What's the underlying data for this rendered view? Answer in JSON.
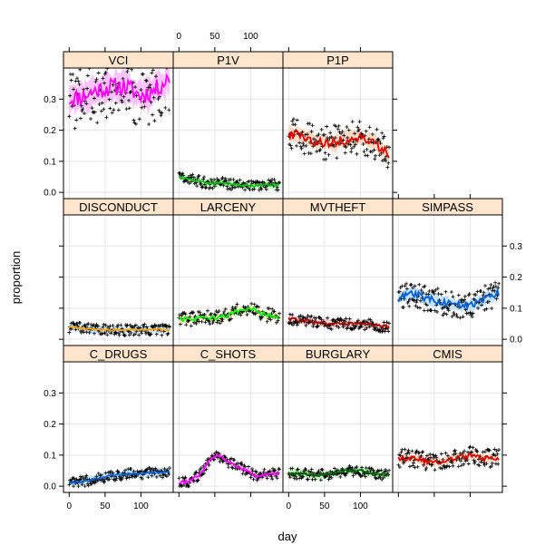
{
  "chart_data": {
    "type": "scatter",
    "xlabel": "day",
    "ylabel": "proportion",
    "xlim": [
      -8,
      145
    ],
    "ylim": [
      -0.02,
      0.4
    ],
    "x_ticks": [
      0,
      50,
      100
    ],
    "x_tick_labels": [
      "0",
      "50",
      "100"
    ],
    "y_ticks": [
      0.0,
      0.1,
      0.2,
      0.3
    ],
    "y_tick_labels": [
      "0.0",
      "0.1",
      "0.2",
      "0.3"
    ],
    "grid": true,
    "layout": {
      "columns": 4,
      "rows": 3
    },
    "colors": {
      "strip": "#ffe5cc",
      "grid": "#e6e6e6",
      "points": "#000000"
    },
    "panels": [
      {
        "name": "VCI",
        "row": 0,
        "col": 0,
        "color": "#ff00ff",
        "band": "#ffc0ff",
        "mean": 0.33,
        "trend": [
          [
            0,
            0.3
          ],
          [
            20,
            0.31
          ],
          [
            40,
            0.33
          ],
          [
            60,
            0.34
          ],
          [
            80,
            0.34
          ],
          [
            100,
            0.31
          ],
          [
            120,
            0.33
          ],
          [
            140,
            0.37
          ]
        ]
      },
      {
        "name": "P1V",
        "row": 0,
        "col": 1,
        "color": "#00c000",
        "band": "#c0ffc0",
        "mean": 0.035,
        "trend": [
          [
            0,
            0.05
          ],
          [
            20,
            0.04
          ],
          [
            40,
            0.03
          ],
          [
            60,
            0.03
          ],
          [
            80,
            0.025
          ],
          [
            100,
            0.02
          ],
          [
            120,
            0.025
          ],
          [
            140,
            0.025
          ]
        ]
      },
      {
        "name": "P1P",
        "row": 0,
        "col": 2,
        "color": "#e00000",
        "band": "#ffd8c0",
        "mean": 0.17,
        "trend": [
          [
            0,
            0.19
          ],
          [
            20,
            0.18
          ],
          [
            40,
            0.16
          ],
          [
            60,
            0.16
          ],
          [
            80,
            0.17
          ],
          [
            100,
            0.18
          ],
          [
            120,
            0.16
          ],
          [
            140,
            0.12
          ]
        ]
      },
      {
        "name": "DISCONDUCT",
        "row": 1,
        "col": 0,
        "color": "#ffa500",
        "band": "#c8e4ff",
        "mean": 0.03,
        "trend": [
          [
            0,
            0.04
          ],
          [
            20,
            0.035
          ],
          [
            40,
            0.03
          ],
          [
            60,
            0.03
          ],
          [
            80,
            0.03
          ],
          [
            100,
            0.03
          ],
          [
            120,
            0.032
          ],
          [
            140,
            0.03
          ]
        ]
      },
      {
        "name": "LARCENY",
        "row": 1,
        "col": 1,
        "color": "#00ff00",
        "band": "#ffffc0",
        "mean": 0.07,
        "trend": [
          [
            0,
            0.065
          ],
          [
            20,
            0.065
          ],
          [
            40,
            0.07
          ],
          [
            60,
            0.07
          ],
          [
            80,
            0.09
          ],
          [
            100,
            0.1
          ],
          [
            120,
            0.08
          ],
          [
            140,
            0.07
          ]
        ]
      },
      {
        "name": "MVTHEFT",
        "row": 1,
        "col": 2,
        "color": "#a00000",
        "band": "#ffd0d0",
        "mean": 0.055,
        "trend": [
          [
            0,
            0.065
          ],
          [
            20,
            0.06
          ],
          [
            40,
            0.055
          ],
          [
            60,
            0.05
          ],
          [
            80,
            0.05
          ],
          [
            100,
            0.05
          ],
          [
            120,
            0.045
          ],
          [
            140,
            0.04
          ]
        ]
      },
      {
        "name": "SIMPASS",
        "row": 1,
        "col": 3,
        "color": "#0060d0",
        "band": "#c0e0ff",
        "mean": 0.13,
        "trend": [
          [
            0,
            0.13
          ],
          [
            20,
            0.15
          ],
          [
            40,
            0.13
          ],
          [
            60,
            0.12
          ],
          [
            80,
            0.11
          ],
          [
            100,
            0.11
          ],
          [
            120,
            0.13
          ],
          [
            140,
            0.15
          ]
        ]
      },
      {
        "name": "C_DRUGS",
        "row": 2,
        "col": 0,
        "color": "#0060d0",
        "band": "#c0e0ff",
        "mean": 0.03,
        "trend": [
          [
            0,
            0.01
          ],
          [
            20,
            0.015
          ],
          [
            40,
            0.025
          ],
          [
            60,
            0.035
          ],
          [
            80,
            0.04
          ],
          [
            100,
            0.04
          ],
          [
            120,
            0.045
          ],
          [
            140,
            0.045
          ]
        ]
      },
      {
        "name": "C_SHOTS",
        "row": 2,
        "col": 1,
        "color": "#ff00ff",
        "band": "#ffc0ff",
        "mean": 0.05,
        "trend": [
          [
            0,
            0.01
          ],
          [
            15,
            0.015
          ],
          [
            30,
            0.04
          ],
          [
            45,
            0.09
          ],
          [
            55,
            0.1
          ],
          [
            75,
            0.07
          ],
          [
            95,
            0.05
          ],
          [
            110,
            0.03
          ],
          [
            125,
            0.04
          ],
          [
            140,
            0.04
          ]
        ]
      },
      {
        "name": "BURGLARY",
        "row": 2,
        "col": 2,
        "color": "#006400",
        "band": "#c0ffc0",
        "mean": 0.04,
        "trend": [
          [
            0,
            0.04
          ],
          [
            20,
            0.04
          ],
          [
            40,
            0.035
          ],
          [
            60,
            0.04
          ],
          [
            80,
            0.05
          ],
          [
            100,
            0.05
          ],
          [
            120,
            0.04
          ],
          [
            140,
            0.035
          ]
        ]
      },
      {
        "name": "CMIS",
        "row": 2,
        "col": 3,
        "color": "#e00000",
        "band": "#ffd8c0",
        "mean": 0.09,
        "trend": [
          [
            0,
            0.09
          ],
          [
            20,
            0.09
          ],
          [
            40,
            0.08
          ],
          [
            60,
            0.08
          ],
          [
            80,
            0.09
          ],
          [
            100,
            0.1
          ],
          [
            120,
            0.09
          ],
          [
            140,
            0.09
          ]
        ]
      }
    ]
  }
}
